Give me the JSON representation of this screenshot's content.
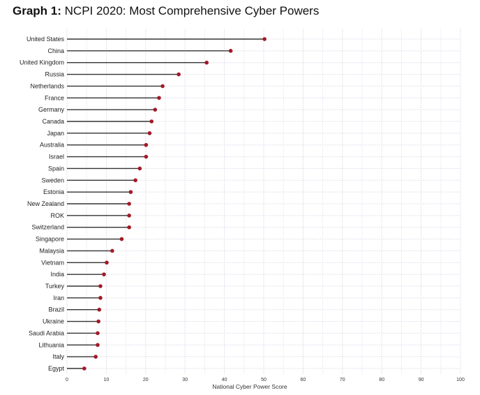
{
  "chart_data": {
    "type": "lollipop",
    "title_prefix": "Graph 1:",
    "title": "NCPI 2020: Most Comprehensive Cyber Powers",
    "xlabel": "National Cyber Power Score",
    "ylabel": "",
    "xlim": [
      0,
      100
    ],
    "xticks": [
      0,
      10,
      20,
      30,
      40,
      50,
      60,
      70,
      80,
      90,
      100
    ],
    "grid": true,
    "colors": {
      "dot": "#a31927",
      "line": "#333333"
    },
    "categories": [
      "United States",
      "China",
      "United Kingdom",
      "Russia",
      "Netherlands",
      "France",
      "Germany",
      "Canada",
      "Japan",
      "Australia",
      "Israel",
      "Spain",
      "Sweden",
      "Estonia",
      "New Zealand",
      "ROK",
      "Switzerland",
      "Singapore",
      "Malaysia",
      "Vietnam",
      "India",
      "Turkey",
      "Iran",
      "Brazil",
      "Ukraine",
      "Saudi Arabia",
      "Lithuania",
      "Italy",
      "Egypt"
    ],
    "values": [
      50.2,
      41.6,
      35.5,
      28.4,
      24.3,
      23.4,
      22.4,
      21.5,
      21.0,
      20.1,
      20.1,
      18.5,
      17.4,
      16.2,
      15.8,
      15.8,
      15.8,
      13.9,
      11.5,
      10.1,
      9.4,
      8.5,
      8.5,
      8.2,
      8.0,
      7.8,
      7.8,
      7.3,
      4.4
    ]
  }
}
